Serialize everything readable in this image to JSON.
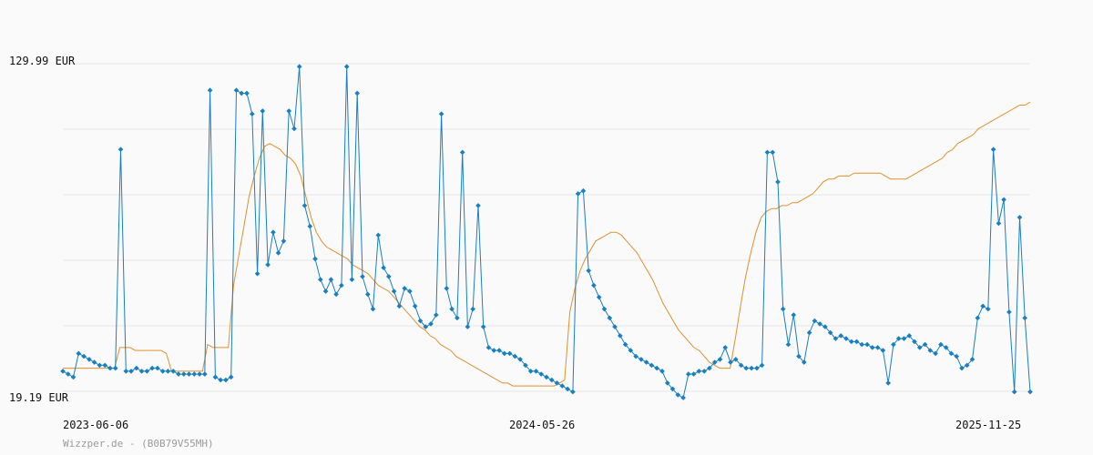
{
  "chart_data": {
    "type": "line",
    "title": "",
    "footer_text": "Wizzper.de - (B0B79V55MH)",
    "y_axis": {
      "min_label": "19.19 EUR",
      "max_label": "129.99 EUR",
      "range": [
        19.19,
        129.99
      ],
      "grid": true
    },
    "x_axis": {
      "tick_labels": [
        "2023-06-06",
        "2024-05-26",
        "2025-11-25"
      ]
    },
    "colors": {
      "price_series": "#1a7fc1",
      "average_series": "#e0902e",
      "grid": "#e6e6e6",
      "background": "#fafafa"
    },
    "series": [
      {
        "values": [
          26,
          25,
          24,
          32,
          31,
          30,
          29,
          28,
          28,
          27,
          27,
          101,
          26,
          26,
          27,
          26,
          26,
          27,
          27,
          26,
          26,
          26,
          25,
          25,
          25,
          25,
          25,
          25,
          121,
          24,
          23,
          23,
          24,
          121,
          120,
          120,
          113,
          59,
          114,
          62,
          73,
          66,
          70,
          114,
          108,
          129,
          82,
          75,
          64,
          57,
          53,
          57,
          52,
          55,
          129,
          57,
          120,
          58,
          52,
          47,
          72,
          61,
          58,
          53,
          48,
          54,
          53,
          48,
          43,
          41,
          42,
          45,
          113,
          54,
          47,
          44,
          100,
          41,
          47,
          82,
          41,
          34,
          33,
          33,
          32,
          32,
          31,
          30,
          28,
          26,
          26,
          25,
          24,
          23,
          22,
          21,
          20,
          19,
          86,
          87,
          60,
          55,
          51,
          47,
          44,
          41,
          38,
          35,
          33,
          31,
          30,
          29,
          28,
          27,
          26,
          22,
          20,
          18,
          17,
          25,
          25,
          26,
          26,
          27,
          29,
          30,
          34,
          29,
          30,
          28,
          27,
          27,
          27,
          28,
          100,
          100,
          90,
          47,
          35,
          45,
          31,
          29,
          39,
          43,
          42,
          41,
          39,
          37,
          38,
          37,
          36,
          36,
          35,
          35,
          34,
          34,
          33,
          22,
          35,
          37,
          37,
          38,
          36,
          34,
          35,
          33,
          32,
          35,
          34,
          32,
          31,
          27,
          28,
          30,
          44,
          48,
          47,
          101,
          76,
          84,
          46,
          19,
          78,
          44,
          19
        ]
      },
      {
        "values": [
          27,
          27,
          27,
          27,
          27,
          27,
          27,
          27,
          27,
          27,
          27,
          34,
          34,
          34,
          33,
          33,
          33,
          33,
          33,
          33,
          32,
          26,
          26,
          26,
          26,
          26,
          26,
          26,
          35,
          34,
          34,
          34,
          34,
          55,
          65,
          75,
          85,
          92,
          98,
          102,
          103,
          102,
          101,
          99,
          98,
          96,
          92,
          85,
          78,
          73,
          70,
          68,
          67,
          66,
          65,
          64,
          62,
          61,
          60,
          59,
          57,
          55,
          54,
          53,
          51,
          49,
          47,
          45,
          43,
          41,
          40,
          38,
          37,
          35,
          34,
          33,
          31,
          30,
          29,
          28,
          27,
          26,
          25,
          24,
          23,
          22,
          22,
          21,
          21,
          21,
          21,
          21,
          21,
          21,
          21,
          21,
          22,
          23,
          46,
          54,
          60,
          64,
          67,
          70,
          71,
          72,
          73,
          73,
          72,
          70,
          68,
          66,
          63,
          60,
          57,
          53,
          49,
          46,
          43,
          40,
          38,
          36,
          34,
          33,
          31,
          29,
          28,
          27,
          27,
          27,
          37,
          48,
          58,
          66,
          73,
          78,
          80,
          81,
          81,
          82,
          82,
          83,
          83,
          84,
          85,
          86,
          88,
          90,
          91,
          91,
          92,
          92,
          92,
          93,
          93,
          93,
          93,
          93,
          93,
          92,
          91,
          91,
          91,
          91,
          92,
          93,
          94,
          95,
          96,
          97,
          98,
          100,
          101,
          103,
          104,
          105,
          106,
          108,
          109,
          110,
          111,
          112,
          113,
          114,
          115,
          116,
          116,
          117
        ]
      }
    ]
  }
}
